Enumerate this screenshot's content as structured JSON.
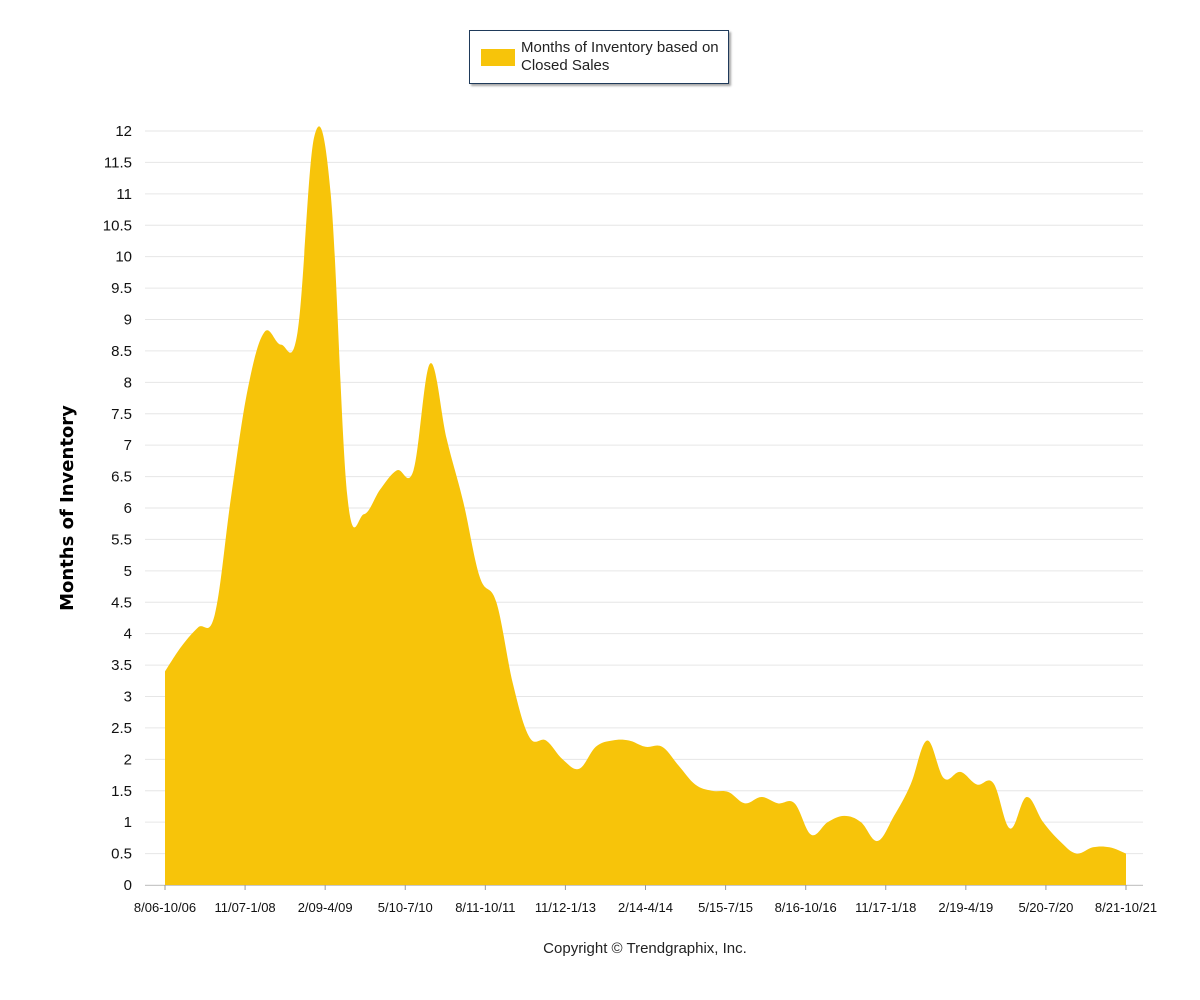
{
  "chart_data": {
    "type": "area",
    "title": "",
    "xlabel": "",
    "ylabel": "Months of Inventory",
    "ylim": [
      0,
      12
    ],
    "yticks": [
      "0",
      "0.5",
      "1",
      "1.5",
      "2",
      "2.5",
      "3",
      "3.5",
      "4",
      "4.5",
      "5",
      "5.5",
      "6",
      "6.5",
      "7",
      "7.5",
      "8",
      "8.5",
      "9",
      "9.5",
      "10",
      "10.5",
      "11",
      "11.5",
      "12"
    ],
    "xtick_labels": [
      "8/06-10/06",
      "11/07-1/08",
      "2/09-4/09",
      "5/10-7/10",
      "8/11-10/11",
      "11/12-1/13",
      "2/14-4/14",
      "5/15-7/15",
      "8/16-10/16",
      "11/17-1/18",
      "2/19-4/19",
      "5/20-7/20",
      "8/21-10/21"
    ],
    "grid": true,
    "legend_position": "top-center",
    "color": "#F7C40A",
    "series": [
      {
        "name": "Months of Inventory based on Closed Sales",
        "values": [
          3.4,
          3.8,
          4.1,
          4.3,
          6.2,
          7.9,
          8.8,
          8.6,
          8.8,
          11.9,
          11.0,
          6.2,
          5.9,
          6.3,
          6.6,
          6.6,
          8.3,
          7.1,
          6.1,
          4.9,
          4.5,
          3.2,
          2.35,
          2.3,
          2.0,
          1.85,
          2.2,
          2.3,
          2.3,
          2.2,
          2.2,
          1.9,
          1.6,
          1.5,
          1.48,
          1.3,
          1.4,
          1.3,
          1.3,
          0.8,
          1.0,
          1.1,
          1.0,
          0.7,
          1.1,
          1.6,
          2.3,
          1.7,
          1.8,
          1.6,
          1.62,
          0.9,
          1.4,
          1.0,
          0.7,
          0.5,
          0.6,
          0.6,
          0.5
        ]
      }
    ]
  },
  "legend": {
    "label": "Months of Inventory based on Closed Sales"
  },
  "footer": {
    "copyright": "Copyright © Trendgraphix, Inc."
  }
}
